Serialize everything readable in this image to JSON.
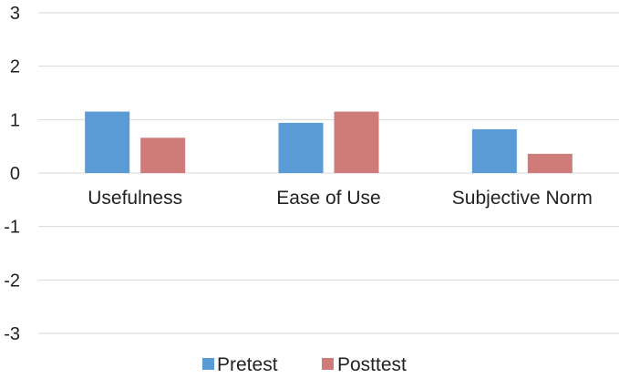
{
  "chart_data": {
    "type": "bar",
    "categories": [
      "Usefulness",
      "Ease of Use",
      "Subjective Norm"
    ],
    "series": [
      {
        "name": "Pretest",
        "values": [
          1.15,
          0.94,
          0.82
        ]
      },
      {
        "name": "Posttest",
        "values": [
          0.66,
          1.15,
          0.36
        ]
      }
    ],
    "title": "",
    "xlabel": "",
    "ylabel": "",
    "ylim": [
      -3,
      3
    ],
    "yticks": [
      "3",
      "2",
      "1",
      "0",
      "-1",
      "-2",
      "-3"
    ],
    "grid": true,
    "legend": "bottom",
    "colors": {
      "Pretest": "#5a9bd5",
      "Posttest": "#cf7b79",
      "grid": "#d9d9d9",
      "text": "#222222"
    }
  }
}
